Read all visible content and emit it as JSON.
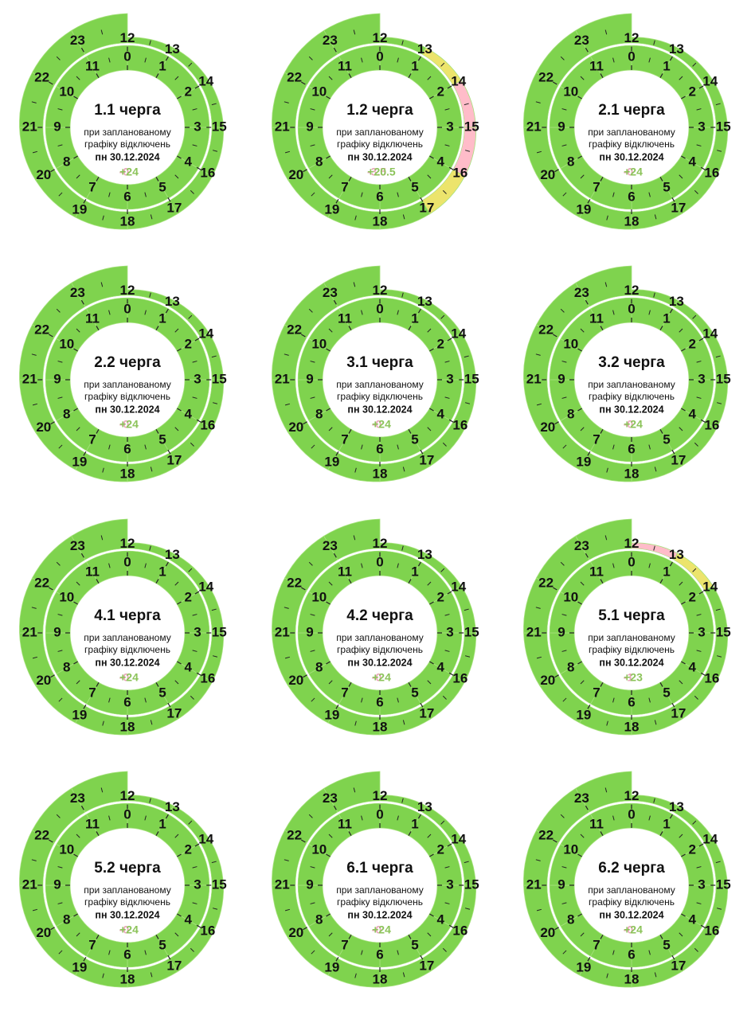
{
  "hours": [
    "0",
    "1",
    "2",
    "3",
    "4",
    "5",
    "6",
    "7",
    "8",
    "9",
    "10",
    "11",
    "12",
    "13",
    "14",
    "15",
    "16",
    "17",
    "18",
    "19",
    "20",
    "21",
    "22",
    "23"
  ],
  "colors": {
    "on": "#7fd34e",
    "off": "#ffbcc9",
    "maybe": "#ece46c"
  },
  "queues": [
    {
      "title": "1.1 черга",
      "subtitle_1": "при запланованому",
      "subtitle_2": "графіку відключень",
      "date": "пн 30.12.2024",
      "off_hours": "-0",
      "on_hours": "+24",
      "states": [
        "on",
        "on",
        "on",
        "on",
        "on",
        "on",
        "on",
        "on",
        "on",
        "on",
        "on",
        "on",
        "on",
        "on",
        "on",
        "on",
        "on",
        "on",
        "on",
        "on",
        "on",
        "on",
        "on",
        "on"
      ]
    },
    {
      "title": "1.2 черга",
      "subtitle_1": "при запланованому",
      "subtitle_2": "графіку відключень",
      "date": "пн 30.12.2024",
      "off_hours": "-3.5",
      "on_hours": "+20.5",
      "states": [
        "on",
        "on",
        "on",
        "on",
        "on",
        "on",
        "on",
        "on",
        "on",
        "on",
        "on",
        "on",
        "on",
        "maybe",
        "off",
        "off",
        "maybe",
        "on",
        "on",
        "on",
        "on",
        "on",
        "on",
        "on"
      ]
    },
    {
      "title": "2.1 черга",
      "subtitle_1": "при запланованому",
      "subtitle_2": "графіку відключень",
      "date": "пн 30.12.2024",
      "off_hours": "-0",
      "on_hours": "+24",
      "states": [
        "on",
        "on",
        "on",
        "on",
        "on",
        "on",
        "on",
        "on",
        "on",
        "on",
        "on",
        "on",
        "on",
        "on",
        "on",
        "on",
        "on",
        "on",
        "on",
        "on",
        "on",
        "on",
        "on",
        "on"
      ]
    },
    {
      "title": "2.2 черга",
      "subtitle_1": "при запланованому",
      "subtitle_2": "графіку відключень",
      "date": "пн 30.12.2024",
      "off_hours": "-0",
      "on_hours": "+24",
      "states": [
        "on",
        "on",
        "on",
        "on",
        "on",
        "on",
        "on",
        "on",
        "on",
        "on",
        "on",
        "on",
        "on",
        "on",
        "on",
        "on",
        "on",
        "on",
        "on",
        "on",
        "on",
        "on",
        "on",
        "on"
      ]
    },
    {
      "title": "3.1 черга",
      "subtitle_1": "при запланованому",
      "subtitle_2": "графіку відключень",
      "date": "пн 30.12.2024",
      "off_hours": "-0",
      "on_hours": "+24",
      "states": [
        "on",
        "on",
        "on",
        "on",
        "on",
        "on",
        "on",
        "on",
        "on",
        "on",
        "on",
        "on",
        "on",
        "on",
        "on",
        "on",
        "on",
        "on",
        "on",
        "on",
        "on",
        "on",
        "on",
        "on"
      ]
    },
    {
      "title": "3.2 черга",
      "subtitle_1": "при запланованому",
      "subtitle_2": "графіку відключень",
      "date": "пн 30.12.2024",
      "off_hours": "-0",
      "on_hours": "+24",
      "states": [
        "on",
        "on",
        "on",
        "on",
        "on",
        "on",
        "on",
        "on",
        "on",
        "on",
        "on",
        "on",
        "on",
        "on",
        "on",
        "on",
        "on",
        "on",
        "on",
        "on",
        "on",
        "on",
        "on",
        "on"
      ]
    },
    {
      "title": "4.1 черга",
      "subtitle_1": "при запланованому",
      "subtitle_2": "графіку відключень",
      "date": "пн 30.12.2024",
      "off_hours": "-0",
      "on_hours": "+24",
      "states": [
        "on",
        "on",
        "on",
        "on",
        "on",
        "on",
        "on",
        "on",
        "on",
        "on",
        "on",
        "on",
        "on",
        "on",
        "on",
        "on",
        "on",
        "on",
        "on",
        "on",
        "on",
        "on",
        "on",
        "on"
      ]
    },
    {
      "title": "4.2 черга",
      "subtitle_1": "при запланованому",
      "subtitle_2": "графіку відключень",
      "date": "пн 30.12.2024",
      "off_hours": "-0",
      "on_hours": "+24",
      "states": [
        "on",
        "on",
        "on",
        "on",
        "on",
        "on",
        "on",
        "on",
        "on",
        "on",
        "on",
        "on",
        "on",
        "on",
        "on",
        "on",
        "on",
        "on",
        "on",
        "on",
        "on",
        "on",
        "on",
        "on"
      ]
    },
    {
      "title": "5.1 черга",
      "subtitle_1": "при запланованому",
      "subtitle_2": "графіку відключень",
      "date": "пн 30.12.2024",
      "off_hours": "-1",
      "on_hours": "+23",
      "states": [
        "on",
        "on",
        "on",
        "on",
        "on",
        "on",
        "on",
        "on",
        "on",
        "on",
        "on",
        "on",
        "off",
        "maybe",
        "on",
        "on",
        "on",
        "on",
        "on",
        "on",
        "on",
        "on",
        "on",
        "on"
      ]
    },
    {
      "title": "5.2 черга",
      "subtitle_1": "при запланованому",
      "subtitle_2": "графіку відключень",
      "date": "пн 30.12.2024",
      "off_hours": "-0",
      "on_hours": "+24",
      "states": [
        "on",
        "on",
        "on",
        "on",
        "on",
        "on",
        "on",
        "on",
        "on",
        "on",
        "on",
        "on",
        "on",
        "on",
        "on",
        "on",
        "on",
        "on",
        "on",
        "on",
        "on",
        "on",
        "on",
        "on"
      ]
    },
    {
      "title": "6.1 черга",
      "subtitle_1": "при запланованому",
      "subtitle_2": "графіку відключень",
      "date": "пн 30.12.2024",
      "off_hours": "-0",
      "on_hours": "+24",
      "states": [
        "on",
        "on",
        "on",
        "on",
        "on",
        "on",
        "on",
        "on",
        "on",
        "on",
        "on",
        "on",
        "on",
        "on",
        "on",
        "on",
        "on",
        "on",
        "on",
        "on",
        "on",
        "on",
        "on",
        "on"
      ]
    },
    {
      "title": "6.2 черга",
      "subtitle_1": "при запланованому",
      "subtitle_2": "графіку відключень",
      "date": "пн 30.12.2024",
      "off_hours": "-0",
      "on_hours": "+24",
      "states": [
        "on",
        "on",
        "on",
        "on",
        "on",
        "on",
        "on",
        "on",
        "on",
        "on",
        "on",
        "on",
        "on",
        "on",
        "on",
        "on",
        "on",
        "on",
        "on",
        "on",
        "on",
        "on",
        "on",
        "on"
      ]
    }
  ]
}
